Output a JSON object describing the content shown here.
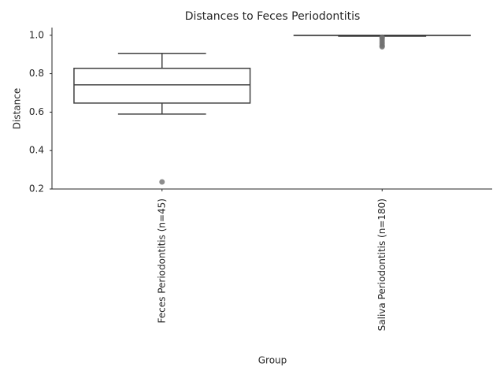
{
  "chart_data": {
    "type": "box",
    "title": "Distances to Feces Periodontitis",
    "x_label": "Group",
    "y_label": "Distance",
    "categories": [
      "Feces Periodontitis (n=45)",
      "Saliva Periodontitis (n=180)"
    ],
    "boxes": [
      {
        "whislo": 0.59,
        "q1": 0.647,
        "med": 0.742,
        "q3": 0.828,
        "whishi": 0.906,
        "fliers": [
          0.237
        ]
      },
      {
        "whislo": 0.995,
        "q1": 0.999,
        "med": 1.0,
        "q3": 1.0,
        "whishi": 1.0,
        "fliers": [
          0.99,
          0.985,
          0.975,
          0.965,
          0.955,
          0.945,
          0.94
        ]
      }
    ],
    "color": "#3f3f3f",
    "flier_color": "#707070",
    "ylim": [
      0.2,
      1.04
    ],
    "yticks": [
      0.2,
      0.4,
      0.6,
      0.8,
      {
        "value": 1.0,
        "label": "1.0"
      }
    ]
  }
}
